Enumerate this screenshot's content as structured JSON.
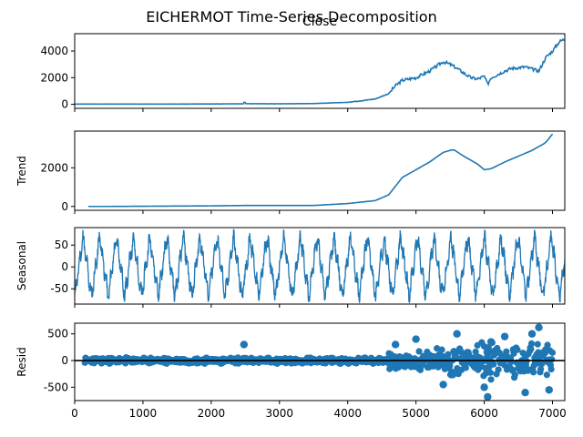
{
  "suptitle": "EICHERMOT Time-Series Decomposition",
  "chart_data": [
    {
      "type": "line",
      "title": "Close",
      "ylabel": "",
      "xlim": [
        0,
        7180
      ],
      "ylim": [
        -300,
        5300
      ],
      "yticks": [
        0,
        2000,
        4000
      ],
      "x": [
        0,
        500,
        1000,
        1500,
        2000,
        2480,
        2490,
        2500,
        3000,
        3500,
        4000,
        4400,
        4600,
        4700,
        4800,
        5000,
        5200,
        5400,
        5500,
        5600,
        5800,
        5900,
        6000,
        6050,
        6100,
        6300,
        6400,
        6600,
        6800,
        6900,
        7000,
        7100,
        7180
      ],
      "values": [
        20,
        20,
        20,
        20,
        30,
        40,
        320,
        50,
        40,
        60,
        150,
        400,
        800,
        1400,
        1800,
        2000,
        2500,
        3200,
        3000,
        2700,
        2000,
        1900,
        2100,
        1500,
        2000,
        2500,
        2700,
        2800,
        2500,
        3500,
        4000,
        4700,
        4900
      ]
    },
    {
      "type": "line",
      "title": "",
      "ylabel": "Trend",
      "xlim": [
        0,
        7180
      ],
      "ylim": [
        -200,
        3900
      ],
      "yticks": [
        0,
        2000
      ],
      "x": [
        200,
        500,
        1000,
        1500,
        2000,
        2500,
        3000,
        3500,
        4000,
        4400,
        4600,
        4800,
        5000,
        5200,
        5400,
        5550,
        5700,
        5900,
        6000,
        6100,
        6300,
        6500,
        6700,
        6900,
        7000
      ],
      "values": [
        0,
        0,
        10,
        20,
        30,
        50,
        50,
        50,
        150,
        300,
        600,
        1500,
        1900,
        2300,
        2800,
        2950,
        2600,
        2200,
        1900,
        1950,
        2300,
        2600,
        2900,
        3300,
        3750
      ]
    },
    {
      "type": "line",
      "title": "",
      "ylabel": "Seasonal",
      "xlim": [
        0,
        7180
      ],
      "ylim": [
        -85,
        90
      ],
      "yticks": [
        -50,
        0,
        50
      ],
      "period": 245,
      "amplitude": 80
    },
    {
      "type": "scatter",
      "title": "",
      "ylabel": "Resid",
      "xlim": [
        0,
        7180
      ],
      "ylim": [
        -750,
        700
      ],
      "yticks": [
        -500,
        0,
        500
      ],
      "xticks": [
        0,
        1000,
        2000,
        3000,
        4000,
        5000,
        6000,
        7000
      ],
      "x": [
        2480,
        4700,
        5000,
        5400,
        5600,
        6000,
        6050,
        6100,
        6300,
        6600,
        6700,
        6800,
        6950
      ],
      "values": [
        300,
        300,
        400,
        -450,
        500,
        -500,
        -680,
        350,
        450,
        -600,
        500,
        620,
        -550
      ]
    }
  ]
}
